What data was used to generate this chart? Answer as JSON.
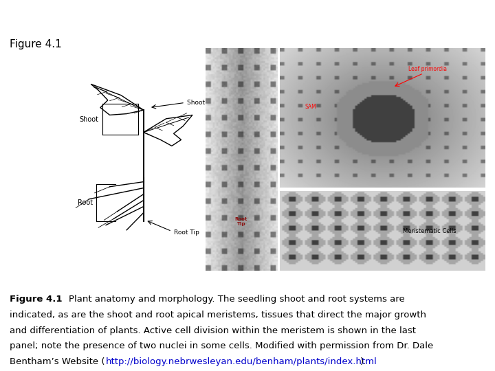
{
  "background_color": "#ffffff",
  "figure_label": "Figure 4.1",
  "figure_label_fontsize": 11,
  "figure_label_fontweight": "normal",
  "caption_fontsize": 9.5,
  "caption_lines": [
    "    Plant anatomy and morphology. The seedling shoot and root systems are",
    "indicated, as are the shoot and root apical meristems, tissues that direct the major growth",
    "and differentiation of plants. Active cell division within the meristem is shown in the last",
    "panel; note the presence of two nuclei in some cells. Modified with permission from Dr. Dale",
    "Bentham’s Website ("
  ],
  "caption_url": "http://biology.nebrwesleyan.edu/benham/plants/index.html",
  "caption_url_color": "#0000cc",
  "caption_close": ")."
}
